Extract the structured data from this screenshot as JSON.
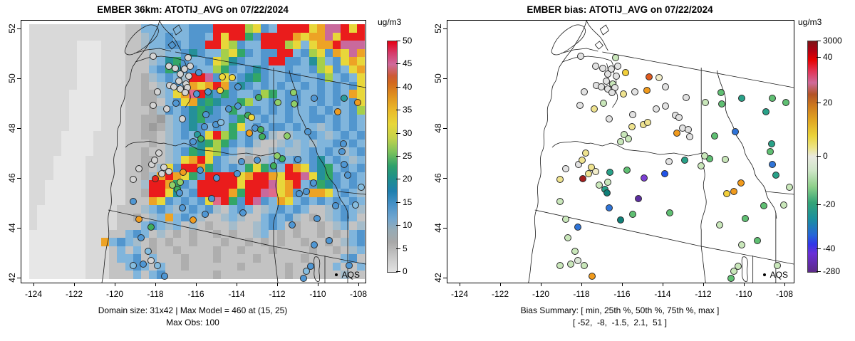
{
  "panel_left": {
    "title": "EMBER 36km: ATOTIJ_AVG on 07/22/2024",
    "caption_line1": "Domain size: 31x42 | Max Model = 460 at (15, 25)",
    "caption_line2": "Max Obs: 100",
    "legend_label": "AQS",
    "colorbar": {
      "title": "ug/m3",
      "ticks": [
        [
          "50",
          0
        ],
        [
          "45",
          10
        ],
        [
          "40",
          20
        ],
        [
          "35",
          30
        ],
        [
          "30",
          40
        ],
        [
          "25",
          50
        ],
        [
          "20",
          60
        ],
        [
          "15",
          70
        ],
        [
          "10",
          80
        ],
        [
          "5",
          90
        ],
        [
          "0",
          100
        ]
      ],
      "stops": [
        [
          "#e60013",
          0
        ],
        [
          "#d63a6a",
          5
        ],
        [
          "#cf6a9c",
          10
        ],
        [
          "#cd5a35",
          15
        ],
        [
          "#d2691e",
          18
        ],
        [
          "#e0941f",
          24
        ],
        [
          "#eaba2a",
          30
        ],
        [
          "#e8d73a",
          36
        ],
        [
          "#c3d24b",
          42
        ],
        [
          "#7cc25c",
          48
        ],
        [
          "#2fa06b",
          54
        ],
        [
          "#1f9089",
          59
        ],
        [
          "#1f7fae",
          65
        ],
        [
          "#4a92c8",
          71
        ],
        [
          "#72a6cf",
          77
        ],
        [
          "#97abb5",
          82
        ],
        [
          "#a8a8a8",
          87
        ],
        [
          "#c9c9c9",
          94
        ],
        [
          "#e2e2e2",
          100
        ]
      ]
    }
  },
  "panel_right": {
    "title": "EMBER bias: ATOTIJ_AVG on 07/22/2024",
    "caption_line1": "Bias Summary: [ min, 25th %, 50th %, 75th %, max ]",
    "caption_line2": "[ -52,  -8,  -1.5,  2.1,  51 ]",
    "legend_label": "AQS",
    "colorbar": {
      "title": "ug/m3",
      "ticks": [
        [
          "3000",
          0
        ],
        [
          "40",
          7
        ],
        [
          "20",
          27
        ],
        [
          "0",
          50
        ],
        [
          "-20",
          71
        ],
        [
          "-40",
          90
        ],
        [
          "-280",
          100
        ]
      ],
      "stops": [
        [
          "#7a1518",
          0
        ],
        [
          "#b00012",
          4
        ],
        [
          "#e60000",
          8
        ],
        [
          "#e23557",
          13
        ],
        [
          "#cf6a9a",
          18
        ],
        [
          "#b35427",
          23
        ],
        [
          "#cd7a1e",
          28
        ],
        [
          "#e0a421",
          34
        ],
        [
          "#ead33a",
          41
        ],
        [
          "#ece484",
          46
        ],
        [
          "#e9e9e0",
          50
        ],
        [
          "#cfe6c8",
          56
        ],
        [
          "#8ed08a",
          63
        ],
        [
          "#33a477",
          70
        ],
        [
          "#1a8f9e",
          77
        ],
        [
          "#2565d8",
          84
        ],
        [
          "#3136e8",
          88
        ],
        [
          "#6a2fd6",
          92
        ],
        [
          "#5b2a86",
          100
        ]
      ]
    }
  },
  "axes": {
    "x_ticks": [
      "-124",
      "-122",
      "-120",
      "-118",
      "-116",
      "-114",
      "-112",
      "-110",
      "-108"
    ],
    "y_ticks": [
      "52",
      "50",
      "48",
      "46",
      "44",
      "42"
    ]
  },
  "chart_data": [
    {
      "type": "heatmap",
      "title": "EMBER 36km: ATOTIJ_AVG on 07/22/2024",
      "units": "ug/m3",
      "xlabel": "",
      "ylabel": "",
      "xlim": [
        -124.6,
        -107.6
      ],
      "ylim": [
        41.9,
        52.3
      ],
      "x_tick_values": [
        -124,
        -122,
        -120,
        -118,
        -116,
        -114,
        -112,
        -110,
        -108
      ],
      "y_tick_values": [
        42,
        44,
        46,
        48,
        50,
        52
      ],
      "colorbar_range": [
        0,
        50
      ],
      "colorbar_tick_values": [
        0,
        5,
        10,
        15,
        20,
        25,
        30,
        35,
        40,
        45,
        50
      ],
      "domain_size": "31x42",
      "max_model": 460,
      "max_model_at": [
        15,
        25
      ],
      "max_obs": 100,
      "overlay": "AQS observation circles colored by observed value",
      "raster_palette": {
        ",": "#d9d9d9",
        ".": "#e7e7e7",
        "-": "#c3c3c3",
        "=": "#aeaeae",
        "x": "#9c9c9c",
        "a": "#a4bccb",
        "b": "#80b5dc",
        "B": "#5296ce",
        "D": "#3279b5",
        "T": "#259099",
        "g": "#33a667",
        "G": "#a6cf4a",
        "y": "#e8d73a",
        "o": "#eda325",
        "O": "#cf6f1f",
        "m": "#c9699c",
        "p": "#e06a8a",
        "R": "#ea1c1c"
      },
      "raster_rows": [
        "12,|2-|6b|3B|4R|1G|1y|1B|1b|4R|1y|1o|2m|1R|1y|1R",
        "12,|2-|1a|2b|1B|2b|2B|1b|1R|1y|2R|1g|1B|4R|1o|1y|2o|1m|1y|2R",
        "6,|3.|3,|2-|1a|2b|2B|1b|2B|2R|1y|1G|1B|2b|3R|1G|1y|1b|1y|2o|1R|1m",
        "6,|3.|3,|3-|2a|2b|1B|1T|1B|2b|1G|1y|1g|1B|1b|2B|2R|1b|1B|1G|1y|1B|1o|1y|1m|1o|1R",
        "6,|3.|3,|3-|1a|1b|1T|1g|1B|2b|1B|1y|1G|1T|1B|2b|1B|2R|2B|1b|1T|1G|1b|1B|1y|1o|1y|1o|1G|1m",
        "6,|3.|3,|3-|1b|1B|1g|1T|2B|2b|1G|1g|1B|1b|1B|1T|1B|2b|1B|2b|1B|1G|1y|1B|1b|1y|1o|1m|1o|1R",
        "6,|3.|3,|2-|1=|1a|1b|1B|1b|1a|2R|1m|1B|1y|1b|1B|1T|1g|1B|2b|2B|2b|1B|1G|1b|1B|1b|1y|1o|1y|1m|1o",
        "6,|3.|3,|2-|1=|1-|1a|1b|1B|1b|1o|1y|1o|1R|1o|1B|1T|1B|1b|1B|1b|1B|2b|1B|1b|1B|1b|1B|1b|1B|1y|1G|1y|1o|1y",
        "5,|4.|3,|2-|2=|1a|1b|1y|1o|1p|1R|1T|1B|1g|1B|2b|1B|1G|1g|1b|2B|2b|1B|1b|1B|1b|1o|1y|1B|1o|1y",
        "5,|4.|3,|2-|2=|1-|1b|1B|1y|1o|1T|1g|1T|2B|1g|1G|2b|1B|1b|2B|2b|1B|1b|1B|1b|1B|1y|1o|1B|1y|1o",
        "5,|4.|3,|3-|1=|1a|1B|1b|1B|1T|1g|1T|1B|1b|1g|1b|2B|1b|1B|1b|1B|2b|1B|1b|1B|2b|1B|1G|1y|1b|1B|1o",
        "5,|4.|3,|2-|2=|1x|1a|1b|1B|1T|1g|2B|1b|1B|1g|2b|1B|2b|1B|2b|2B|1b|1B|1b|1B|1b|1G|1b|1B|1y",
        "5,|4.|3,|2-|1=|1x|1=|1a|1b|1B|1T|1B|1b|1B|1b|1g|1y|1b|1B|1b|2B|1b|1B|2b|1a|1b|1B|1b|1B|1b|1B|1b|1B",
        "4,|4.|4,|2-|2=|1-|1a|1b|1B|1b|1B|1y|1R|1G|1g|1b|1B|1b|1B|1a|1-|1a|2b|1B|1b|1a|1b|1B|1b|1B|1b|1B|1b",
        "4,|4.|4,|3-|1=|1-|1a|2b|1B|1T|1g|1G|1g|1B|1b|1B|1a|2-|1a|1b|1a|1b|1a|2b|1B|1b|1B|1b|1B|1b|1a|1b",
        "4,|4.|4,|2-|1=|2-|1a|1b|1B|1g|1T|1y|1G|1B|1b|1-|1a|2-|1a|1b|2a|1b|1B|1b|1B|1b|1a|1b|1B|1b|1B|1b|1a",
        "3,|4.|5,|2-|2=|1-|1a|1b|1y|1o|1R|1y|1B|1b|1a|1-|1=|1-|1a|1b|1B|1b|1B|1b|1B|1T|1b|1B|1b|1a|1b|1B|1b|1B",
        "3,|4.|5,|2-|1=|1-|1a|1y|1B|2R|1o|1g|1B|1b|1B|1b|1g|1y|1g|1B|1b|1R|1o|1y|1B|1T|1g|1b|1B|1b|1B|1b|1a",
        "3,|4.|5,|2-|1=|1a|1o|1R|1o|1y|1g|1B|4R|1y|1o|2R|1o|1y|2R|1m|1y|1T|1g|1B|1b|1B|1b|1a|1b",
        "2,|5.|5,|2-|1a|2R|1o|1g|1B|1b|5R|1y|3R|1m|1y|1o|1R|1b|1B|1g|1T|1B|1b|1B|1b|1B|1b",
        "2,|5.|5,|2-|1=|2R|1y|1T|1b|1B|4R|1o|1g|2R|1m|1p|1y|1o|1B|1b|2o|1y|1b|1B|1b|1a|1b|1B",
        "2,|5.|5,|3-|1o|1y|1B|1b|1B|1b|1B|1y|1p|1R|1g|1B|1R|1m|1B|1b|1o|1y|1b|1B|1b|1B|1b|1B|1b|1B|1b|1B|1b",
        "1,|6.|4,|3-|1a|1b|1B|1b|1a|1b|1B|1b|1B|1a|1-|1b|1B|1b|1-|1a|1b|1B|1b|1B|1b|2-|1a|1b|1B|1b|1a|1-|1a",
        "1,|6.|4,|2-|1=|1-|1a|1b|1o|1b|1B|1b|1a|2-|1a|1b|1a|2-|1b|1B|1b|1B|1a|1-|1=|1-|1a|1b|1B|1b|1-|1a|1b",
        "1,|6.|4,|3-|1b|1B|1b|1a|1b|1-|1a|1-|1=|2-|1a|2-|1a|1b|1B|1b|1-|1=|2-|1=|1-|1a|1b|1-|1a|1-|1b|1a",
        "7.|3,|2-|1b|1B|1b|1-|1a|1-|1=|1-|1=|2-|1=|1-|1=|2-|1a|1b|1-|1=|1-|1=|2-|1=|1-|1=|1-|1b|1B|1b|1-",
        "7.|2,|1o|1b|1B|1b|1a|1-|1=|1-|1=|2-|1=|3-|1=|2-|1=|1-|1=|1-|1=|2-|1=|2-|1=|1-|1a|1b|1B|1-|1a|1b",
        "7.|2,|1,|1-|1b|1-|1b|1-|1=|2-|1=|4-|1=|2-|1=|3-|1=|4-|1=|2-|1=|1-|1a|1b|1a|1-",
        "7.|2,|1,|1-|2b|1B|1-|1b|3-|1=|3-|1=|4-|1=|5-|1=|4-|1b|1B|1-|1a",
        "7.|2,|1,|2-|1b|1B|1b|1-|1b|2-|1=|6-|1=|5-|1=|5-|1b|2-|1b|1a",
        "7.|2,|1,|3-|1b|1-|1b|1B|6-|1=|8-|1=|6-|1a|2-"
      ]
    },
    {
      "type": "scatter",
      "title": "EMBER bias: ATOTIJ_AVG on 07/22/2024",
      "units": "ug/m3",
      "xlabel": "",
      "ylabel": "",
      "xlim": [
        -124.6,
        -107.6
      ],
      "ylim": [
        41.9,
        52.3
      ],
      "x_tick_values": [
        -124,
        -122,
        -120,
        -118,
        -116,
        -114,
        -112,
        -110,
        -108
      ],
      "y_tick_values": [
        42,
        44,
        46,
        48,
        50,
        52
      ],
      "colorbar_tick_values": [
        3000,
        40,
        20,
        0,
        -20,
        -40,
        -280
      ],
      "bias_summary": {
        "min": -52,
        "p25": -8,
        "p50": -1.5,
        "p75": 2.1,
        "max": 51
      },
      "overlay": "AQS station circles colored by model bias"
    }
  ],
  "station_palettes": {
    "obs": {
      "gray": "#d4d4d4",
      "blue": "#4f97d4",
      "lightblue": "#85bde0",
      "teal": "#2a9d9d",
      "green": "#3fae5c",
      "lightgreen": "#90d068",
      "yellow": "#f2d93b",
      "orange": "#f09c1e",
      "red": "#e8251c"
    },
    "bias": {
      "gray": "#e2e2e2",
      "cream": "#f2edc9",
      "paleyellow": "#efe38f",
      "yellow": "#f2cf3a",
      "orange": "#f09a1c",
      "redorange": "#e05a1e",
      "darkred": "#a31d1d",
      "palegreen": "#c9e7ba",
      "green": "#5fbf72",
      "teal": "#28a188",
      "tealdark": "#0f7f78",
      "blue": "#2f74d8",
      "brightblue": "#2053e8",
      "purple": "#7b3fd4",
      "violet": "#5c2ea0",
      "graygreen": "#dde8d8"
    }
  },
  "stations": [
    [
      38.4,
      13.6,
      "gray",
      "gray"
    ],
    [
      48.5,
      14.1,
      "gray",
      "palegreen"
    ],
    [
      42.9,
      17.4,
      "gray",
      "gray"
    ],
    [
      49.1,
      17.4,
      "gray",
      "gray"
    ],
    [
      44.8,
      18.2,
      "gray",
      "gray"
    ],
    [
      47.4,
      18.5,
      "gray",
      "gray"
    ],
    [
      51.5,
      19.8,
      "blue",
      "yellow"
    ],
    [
      46.2,
      20.4,
      "gray",
      "gray"
    ],
    [
      48.7,
      21.2,
      "gray",
      "gray"
    ],
    [
      58.3,
      21.5,
      "yellow",
      "redorange"
    ],
    [
      61.2,
      21.7,
      "yellow",
      "cream"
    ],
    [
      45.8,
      23.1,
      "gray",
      "gray"
    ],
    [
      47.8,
      24.2,
      "gray",
      "palegreen"
    ],
    [
      43.1,
      24.7,
      "gray",
      "gray"
    ],
    [
      44.4,
      25.3,
      "gray",
      "gray"
    ],
    [
      46.2,
      26.1,
      "gray",
      "gray"
    ],
    [
      48.3,
      25.5,
      "gray",
      "gray"
    ],
    [
      39.6,
      27.2,
      "gray",
      "gray"
    ],
    [
      47.6,
      27.4,
      "gray",
      "gray"
    ],
    [
      50.9,
      28.0,
      "blue",
      "paleyellow"
    ],
    [
      54.2,
      27.2,
      "blue",
      "gray"
    ],
    [
      57.7,
      26.6,
      "yellow",
      "orange"
    ],
    [
      63.0,
      25.3,
      "blue",
      "gray"
    ],
    [
      38.2,
      32.3,
      "gray",
      "gray"
    ],
    [
      42.3,
      33.7,
      "gray",
      "paleyellow"
    ],
    [
      45.0,
      31.5,
      "blue",
      "palegreen"
    ],
    [
      46.8,
      37.5,
      "gray",
      "gray"
    ],
    [
      53.6,
      35.9,
      "blue",
      "gray"
    ],
    [
      56.5,
      39.7,
      "blue",
      "paleyellow"
    ],
    [
      57.9,
      38.9,
      "lightblue",
      "paleyellow"
    ],
    [
      53.2,
      40.5,
      "blue",
      "paleyellow"
    ],
    [
      51.1,
      43.5,
      "teal",
      "palegreen"
    ],
    [
      52.2,
      45.1,
      "green",
      "palegreen"
    ],
    [
      49.9,
      46.2,
      "blue",
      "palegreen"
    ],
    [
      60.2,
      33.7,
      "blue",
      "gray"
    ],
    [
      63.0,
      32.6,
      "blue",
      "gray"
    ],
    [
      69.0,
      29.3,
      "green",
      "gray"
    ],
    [
      74.5,
      31.3,
      "lightgreen",
      "palegreen"
    ],
    [
      79.1,
      27.4,
      "lightgreen",
      "green"
    ],
    [
      79.3,
      31.8,
      "lightgreen",
      "green"
    ],
    [
      85.0,
      29.6,
      "blue",
      "teal"
    ],
    [
      93.8,
      29.6,
      "teal",
      "green"
    ],
    [
      92.0,
      34.8,
      "orange",
      "teal"
    ],
    [
      97.7,
      31.3,
      "orange",
      "green"
    ],
    [
      65.9,
      36.1,
      "green",
      "gray"
    ],
    [
      66.9,
      37.0,
      "yellow",
      "gray"
    ],
    [
      68.0,
      41.0,
      "blue",
      "gray"
    ],
    [
      69.6,
      41.6,
      "green",
      "gray"
    ],
    [
      70.0,
      44.3,
      "green",
      "gray"
    ],
    [
      77.2,
      44.0,
      "lightgreen",
      "green"
    ],
    [
      66.3,
      42.9,
      "orange",
      "orange"
    ],
    [
      83.2,
      42.4,
      "blue",
      "blue"
    ],
    [
      93.6,
      47.0,
      "blue",
      "teal"
    ],
    [
      93.2,
      50.0,
      "blue",
      "green"
    ],
    [
      80.3,
      53.0,
      "blue",
      "palegreen"
    ],
    [
      75.8,
      52.7,
      "green",
      "green"
    ],
    [
      74.3,
      51.6,
      "lightgreen",
      "palegreen"
    ],
    [
      68.6,
      53.3,
      "blue",
      "teal"
    ],
    [
      63.9,
      53.8,
      "blue",
      "gray"
    ],
    [
      62.8,
      58.4,
      "blue",
      "brightblue"
    ],
    [
      56.7,
      60.1,
      "blue",
      "purple"
    ],
    [
      55.2,
      67.9,
      "blue",
      "violet"
    ],
    [
      39.0,
      60.3,
      "red",
      "darkred"
    ],
    [
      42.9,
      57.6,
      "gray",
      "cream"
    ],
    [
      47.0,
      57.9,
      "orange",
      "teal"
    ],
    [
      51.9,
      57.1,
      "blue",
      "green"
    ],
    [
      41.5,
      56.0,
      "gray",
      "paleyellow"
    ],
    [
      40.7,
      58.4,
      "gray",
      "paleyellow"
    ],
    [
      37.8,
      54.9,
      "gray",
      "gray"
    ],
    [
      40.0,
      50.5,
      "gray",
      "paleyellow"
    ],
    [
      38.8,
      53.3,
      "gray",
      "paleyellow"
    ],
    [
      32.6,
      60.6,
      "gray",
      "paleyellow"
    ],
    [
      34.1,
      56.5,
      "gray",
      "gray"
    ],
    [
      43.9,
      62.8,
      "lightgreen",
      "palegreen"
    ],
    [
      46.2,
      61.7,
      "lightgreen",
      "palegreen"
    ],
    [
      45.4,
      64.4,
      "green",
      "teal"
    ],
    [
      46.0,
      65.8,
      "blue",
      "tealdark"
    ],
    [
      49.9,
      76.1,
      "orange",
      "tealdark"
    ],
    [
      46.8,
      71.5,
      "blue",
      "blue"
    ],
    [
      37.6,
      78.8,
      "green",
      "blue"
    ],
    [
      34.1,
      75.8,
      "orange",
      "palegreen"
    ],
    [
      53.4,
      73.9,
      "blue",
      "green"
    ],
    [
      64.3,
      73.4,
      "blue",
      "green"
    ],
    [
      32.6,
      69.0,
      "blue",
      "palegreen"
    ],
    [
      34.7,
      82.9,
      "blue",
      "palegreen"
    ],
    [
      36.8,
      88.0,
      "lightblue",
      "palegreen"
    ],
    [
      37.6,
      91.6,
      "gray",
      "graygreen"
    ],
    [
      35.5,
      92.9,
      "blue",
      "palegreen"
    ],
    [
      39.6,
      93.5,
      "lightblue",
      "palegreen"
    ],
    [
      32.6,
      93.5,
      "lightblue",
      "palegreen"
    ],
    [
      41.7,
      97.5,
      "blue",
      "orange"
    ],
    [
      82.8,
      65.2,
      "blue",
      "orange"
    ],
    [
      84.8,
      62.0,
      "blue",
      "orange"
    ],
    [
      80.7,
      66.0,
      "blue",
      "yellow"
    ],
    [
      73.3,
      55.4,
      "green",
      "palegreen"
    ],
    [
      93.8,
      54.9,
      "blue",
      "blue"
    ],
    [
      94.9,
      59.0,
      "blue",
      "teal"
    ],
    [
      97.1,
      70.4,
      "lightblue",
      "palegreen"
    ],
    [
      91.4,
      70.7,
      "blue",
      "green"
    ],
    [
      86.0,
      75.5,
      "blue",
      "green"
    ],
    [
      78.6,
      78.0,
      "blue",
      "palegreen"
    ],
    [
      89.5,
      84.0,
      "blue",
      "green"
    ],
    [
      85.0,
      85.6,
      "blue",
      "palegreen"
    ],
    [
      95.3,
      93.5,
      "blue",
      "palegreen"
    ],
    [
      82.8,
      95.7,
      "lightblue",
      "palegreen"
    ],
    [
      84.0,
      93.8,
      "blue",
      "palegreen"
    ],
    [
      81.9,
      98.5,
      "blue",
      "green"
    ],
    [
      98.8,
      63.6,
      "lightblue",
      "palegreen"
    ]
  ]
}
